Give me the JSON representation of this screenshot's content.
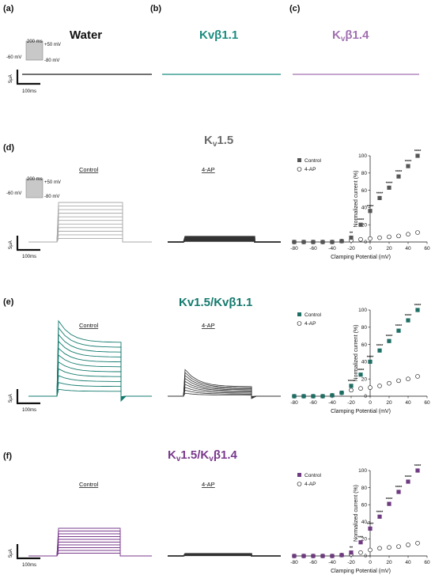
{
  "colors": {
    "water": "#1a1a1a",
    "kvb11": "#1a8c80",
    "kvb14": "#a070b0",
    "kv15_trace": "#a8a8a8",
    "fourap": "#333333",
    "kv15_b11": "#147a6e",
    "kv15_b14": "#7a3a8c",
    "control_kv15": "#555555",
    "control_b11": "#1d6e64",
    "control_b14": "#6e3a80"
  },
  "panel_labels": {
    "a": "(a)",
    "b": "(b)",
    "c": "(c)",
    "d": "(d)",
    "e": "(e)",
    "f": "(f)"
  },
  "titles": {
    "water": "Water",
    "kvb11": "Kvβ1.1",
    "kvb14": {
      "main": "K",
      "sub": "v",
      "rest": "β1.4"
    },
    "kv15": {
      "main": "K",
      "sub": "v",
      "rest": "1.5"
    },
    "kv15_b11": "Kv1.5/Kvβ1.1",
    "kv15_b14": {
      "a": "K",
      "a_sub": "v",
      "b": "1.5/K",
      "b_sub": "v",
      "c": "β1.4"
    }
  },
  "protocol": {
    "duration": "200 ms",
    "step": "+50 mV",
    "hold": "-60 mV",
    "tail": "-80 mV"
  },
  "scale": {
    "current": "5μA",
    "time": "100ms"
  },
  "conditions": {
    "control": "Control",
    "fourap": "4-AP"
  },
  "axes": {
    "ylabel": "Normalized current (%)",
    "xlabel": "Clamping Potential (mV)",
    "xticks": [
      "-80",
      "-60",
      "-40",
      "-20",
      "0",
      "20",
      "40",
      "60"
    ],
    "yticks": [
      "0",
      "20",
      "40",
      "60",
      "80",
      "100"
    ],
    "xlim": [
      -80,
      60
    ],
    "ylim": [
      0,
      100
    ]
  },
  "chart_data": [
    {
      "type": "scatter",
      "panel": "d",
      "x": [
        -80,
        -70,
        -60,
        -50,
        -40,
        -30,
        -20,
        -10,
        0,
        10,
        20,
        30,
        40,
        50
      ],
      "series": [
        {
          "name": "Control",
          "values": [
            0,
            0,
            0,
            0,
            0,
            1,
            5,
            20,
            36,
            51,
            63,
            76,
            88,
            100
          ],
          "stars": [
            "",
            "",
            "",
            "",
            "",
            "",
            "**",
            "****",
            "****",
            "****",
            "****",
            "****",
            "****",
            "****"
          ]
        },
        {
          "name": "4-AP",
          "values": [
            0,
            0,
            0,
            0,
            0,
            1,
            2,
            3,
            4,
            5,
            6,
            7,
            9,
            11
          ]
        }
      ],
      "xlabel": "Clamping Potential (mV)",
      "ylabel": "Normalized current (%)",
      "xlim": [
        -80,
        60
      ],
      "ylim": [
        0,
        100
      ],
      "legend": "top-left"
    },
    {
      "type": "scatter",
      "panel": "e",
      "x": [
        -80,
        -70,
        -60,
        -50,
        -40,
        -30,
        -20,
        -10,
        0,
        10,
        20,
        30,
        40,
        50
      ],
      "series": [
        {
          "name": "Control",
          "values": [
            0,
            0,
            0,
            0,
            1,
            4,
            12,
            25,
            40,
            53,
            64,
            76,
            88,
            100
          ],
          "stars": [
            "",
            "",
            "",
            "",
            "",
            "",
            "****",
            "****",
            "****",
            "****",
            "****",
            "****",
            "****",
            "****"
          ]
        },
        {
          "name": "4-AP",
          "values": [
            0,
            0,
            0,
            0,
            1,
            4,
            7,
            9,
            10,
            12,
            15,
            18,
            20,
            23
          ]
        }
      ],
      "xlabel": "Clamping Potential (mV)",
      "ylabel": "Normalized current (%)",
      "xlim": [
        -80,
        60
      ],
      "ylim": [
        0,
        100
      ],
      "legend": "top-left"
    },
    {
      "type": "scatter",
      "panel": "f",
      "x": [
        -80,
        -70,
        -60,
        -50,
        -40,
        -30,
        -20,
        -10,
        0,
        10,
        20,
        30,
        40,
        50
      ],
      "series": [
        {
          "name": "Control",
          "values": [
            0,
            0,
            0,
            0,
            0,
            1,
            4,
            16,
            32,
            46,
            61,
            75,
            87,
            100
          ],
          "stars": [
            "",
            "",
            "",
            "",
            "",
            "",
            "**",
            "***",
            "****",
            "****",
            "****",
            "****",
            "****",
            "****"
          ]
        },
        {
          "name": "4-AP",
          "values": [
            0,
            0,
            0,
            0,
            0,
            1,
            2,
            4,
            7,
            9,
            10,
            11,
            13,
            15
          ]
        }
      ],
      "xlabel": "Clamping Potential (mV)",
      "ylabel": "Normalized current (%)",
      "xlim": [
        -80,
        60
      ],
      "ylim": [
        0,
        100
      ],
      "legend": "top-left"
    }
  ]
}
